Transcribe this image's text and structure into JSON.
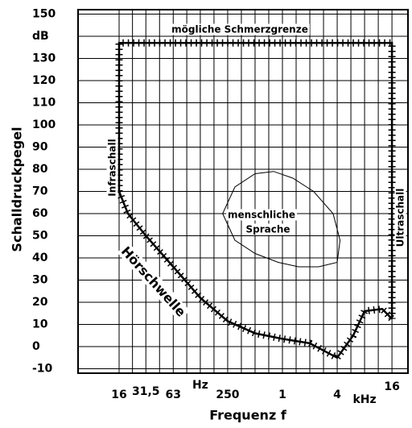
{
  "chart_data": {
    "type": "line",
    "ylabel": "Schalldruckpegel",
    "xlabel": "Frequenz f",
    "log_x": true,
    "grid": true,
    "color": "#000000",
    "xlim": [
      5.66,
      24000
    ],
    "ylim": [
      -12,
      152
    ],
    "xticks": [
      16,
      {
        "value": 31.5,
        "label": "31,5"
      },
      63,
      {
        "value": 125,
        "label": "Hz"
      },
      250,
      {
        "value": 1000,
        "label": "1"
      },
      {
        "value": 4000,
        "label": "4"
      },
      {
        "value": 8000,
        "label": "kHz"
      },
      {
        "value": 16000,
        "label": "16"
      }
    ],
    "yticks": [
      150,
      {
        "value": 140,
        "label": "dB"
      },
      130,
      120,
      110,
      100,
      90,
      80,
      70,
      60,
      50,
      40,
      30,
      20,
      10,
      0,
      -10
    ],
    "series": [
      {
        "x": [
          16,
          20,
          31.5,
          63,
          125,
          250,
          500,
          1000,
          2000,
          4000,
          6000,
          8000,
          12500,
          16000
        ],
        "values": [
          70,
          60,
          50,
          36,
          22,
          11.5,
          6,
          3.5,
          1.5,
          -5,
          5,
          16,
          17,
          12.5
        ],
        "hatch": true
      },
      {
        "x": [
          16,
          16,
          16000,
          16000
        ],
        "values": [
          70,
          137,
          137,
          12.5
        ],
        "hatch": true
      },
      {
        "x": [
          220,
          300,
          500,
          800,
          1300,
          2200,
          3600,
          4300,
          4000,
          2500,
          1500,
          900,
          500,
          300,
          220
        ],
        "values": [
          60,
          72,
          78,
          79,
          76,
          70,
          60,
          48,
          38,
          36,
          36,
          38,
          42,
          48,
          60
        ],
        "hatch": false
      }
    ],
    "annotations": [
      "mögliche Schmerzgrenze",
      "Infraschall",
      "Ultraschall",
      "Hörschwelle",
      "menschliche",
      "Sprache"
    ]
  }
}
